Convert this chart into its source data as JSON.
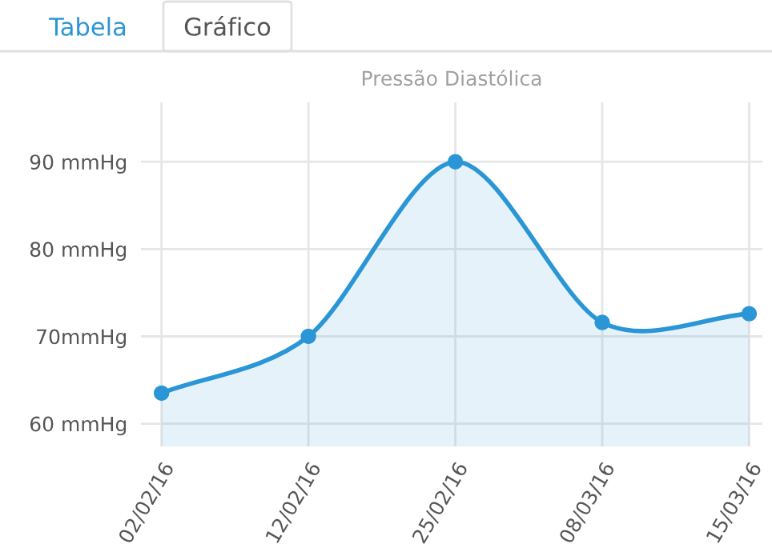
{
  "chart_data": {
    "type": "area",
    "title": "Pressão Diastólica",
    "annotations": [
      "Tabela",
      "Gráfico"
    ],
    "categories": [
      "02/02/16",
      "12/02/16",
      "25/02/16",
      "08/03/16",
      "15/03/16"
    ],
    "series": [
      {
        "color": "#2b96d5",
        "values": [
          63.5,
          70,
          90,
          71.6,
          72.6
        ]
      }
    ],
    "ylim": [
      57.4,
      96.8
    ],
    "yticks": [
      {
        "value": 60,
        "label": "60 mmHg"
      },
      {
        "value": 70,
        "label": "70mmHg"
      },
      {
        "value": 80,
        "label": "80 mmHg"
      },
      {
        "value": 90,
        "label": "90 mmHg"
      }
    ],
    "grid": true,
    "marker": "circle",
    "legend": false
  }
}
